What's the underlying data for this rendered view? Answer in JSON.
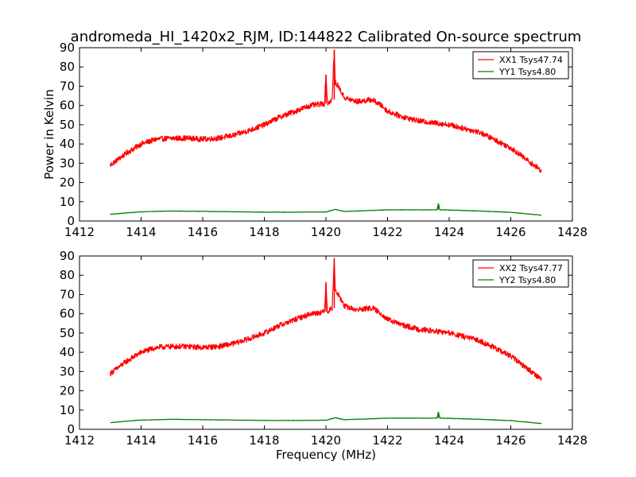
{
  "figure": {
    "title": "andromeda_HI_1420x2_RJM, ID:144822 Calibrated On-source spectrum"
  },
  "chart_data": [
    {
      "type": "line",
      "title": "andromeda_HI_1420x2_RJM, ID:144822 Calibrated On-source spectrum",
      "xlabel": "",
      "ylabel": "Power in Kelvin",
      "xlim": [
        1412,
        1428
      ],
      "ylim": [
        0,
        90
      ],
      "xticks": [
        1412,
        1414,
        1416,
        1418,
        1420,
        1422,
        1424,
        1426,
        1428
      ],
      "yticks": [
        0,
        10,
        20,
        30,
        40,
        50,
        60,
        70,
        80,
        90
      ],
      "grid": false,
      "legend_position": "top-right",
      "series": [
        {
          "name": "XX1 Tsys47.74",
          "color": "#ff0000",
          "x": [
            1413.0,
            1413.5,
            1414.0,
            1414.5,
            1415.0,
            1415.5,
            1416.0,
            1416.5,
            1417.0,
            1417.5,
            1418.0,
            1418.5,
            1419.0,
            1419.5,
            1419.95,
            1420.0,
            1420.05,
            1420.2,
            1420.27,
            1420.3,
            1420.4,
            1420.6,
            1421.0,
            1421.5,
            1421.8,
            1422.0,
            1422.5,
            1423.0,
            1423.5,
            1424.0,
            1424.5,
            1425.0,
            1425.5,
            1426.0,
            1426.5,
            1427.0
          ],
          "values": [
            29,
            35,
            40,
            42.5,
            43,
            43,
            42.5,
            43,
            44.5,
            47,
            50,
            54,
            57,
            60,
            61,
            76,
            61,
            63,
            89,
            72,
            70,
            64,
            62,
            63,
            60,
            57,
            54,
            52,
            51,
            50,
            48,
            46,
            42,
            38,
            32,
            26
          ]
        },
        {
          "name": "YY1 Tsys4.80",
          "color": "#008000",
          "x": [
            1413.0,
            1414.0,
            1415.0,
            1416.0,
            1417.0,
            1418.0,
            1419.0,
            1420.0,
            1420.3,
            1420.6,
            1421.0,
            1422.0,
            1423.0,
            1423.6,
            1423.65,
            1423.7,
            1424.0,
            1425.0,
            1426.0,
            1427.0
          ],
          "values": [
            3.5,
            4.8,
            5.2,
            5.0,
            4.8,
            4.6,
            4.6,
            4.7,
            6.0,
            5.0,
            5.2,
            5.8,
            5.8,
            5.8,
            9.0,
            5.8,
            5.7,
            5.2,
            4.5,
            3.0
          ]
        }
      ]
    },
    {
      "type": "line",
      "title": "",
      "xlabel": "Frequency (MHz)",
      "ylabel": "",
      "xlim": [
        1412,
        1428
      ],
      "ylim": [
        0,
        90
      ],
      "xticks": [
        1412,
        1414,
        1416,
        1418,
        1420,
        1422,
        1424,
        1426,
        1428
      ],
      "yticks": [
        0,
        10,
        20,
        30,
        40,
        50,
        60,
        70,
        80,
        90
      ],
      "grid": false,
      "legend_position": "top-right",
      "series": [
        {
          "name": "XX2 Tsys47.77",
          "color": "#ff0000",
          "x": [
            1413.0,
            1413.5,
            1414.0,
            1414.5,
            1415.0,
            1415.5,
            1416.0,
            1416.5,
            1417.0,
            1417.5,
            1418.0,
            1418.5,
            1419.0,
            1419.5,
            1419.95,
            1420.0,
            1420.05,
            1420.2,
            1420.27,
            1420.3,
            1420.4,
            1420.6,
            1421.0,
            1421.5,
            1421.8,
            1422.0,
            1422.5,
            1423.0,
            1423.5,
            1424.0,
            1424.5,
            1425.0,
            1425.5,
            1426.0,
            1426.5,
            1427.0
          ],
          "values": [
            29,
            35,
            40,
            42.5,
            43,
            43,
            42.5,
            43,
            44.5,
            47,
            50,
            54,
            57,
            60,
            61,
            76,
            61,
            63,
            89,
            72,
            70,
            64,
            62,
            63,
            60,
            57,
            54,
            52,
            51,
            50,
            48,
            46,
            42,
            38,
            32,
            26
          ]
        },
        {
          "name": "YY2 Tsys4.80",
          "color": "#008000",
          "x": [
            1413.0,
            1414.0,
            1415.0,
            1416.0,
            1417.0,
            1418.0,
            1419.0,
            1420.0,
            1420.3,
            1420.6,
            1421.0,
            1422.0,
            1423.0,
            1423.6,
            1423.65,
            1423.7,
            1424.0,
            1425.0,
            1426.0,
            1427.0
          ],
          "values": [
            3.5,
            4.8,
            5.2,
            5.0,
            4.8,
            4.6,
            4.6,
            4.7,
            6.0,
            5.0,
            5.2,
            5.8,
            5.8,
            5.8,
            9.0,
            5.8,
            5.7,
            5.2,
            4.5,
            3.0
          ]
        }
      ]
    }
  ]
}
